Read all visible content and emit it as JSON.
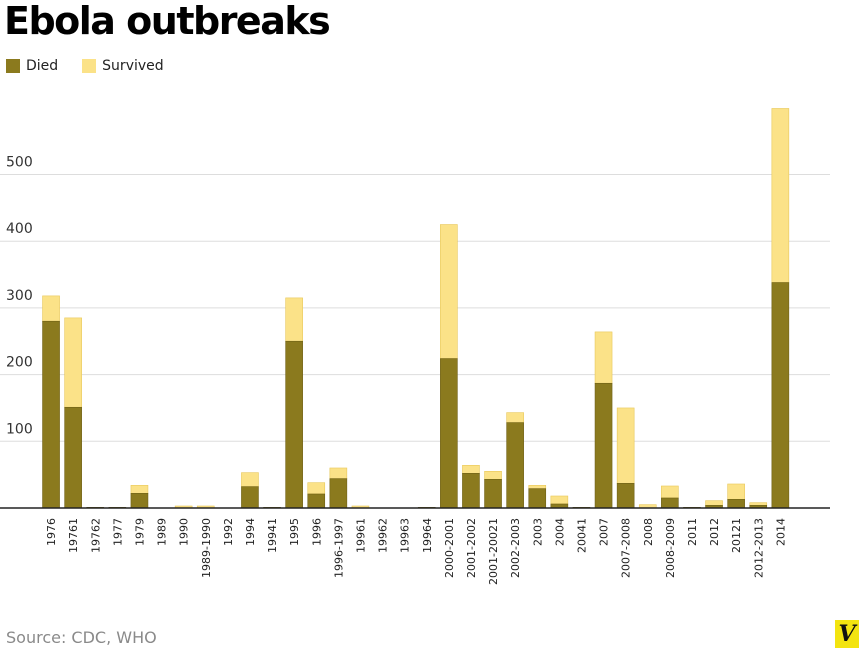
{
  "chart_data": {
    "type": "bar",
    "stacked": true,
    "title": "Ebola outbreaks",
    "legend_position": "top-left",
    "grid": true,
    "ylim": [
      0,
      600
    ],
    "yticks": [
      100,
      200,
      300,
      400,
      500
    ],
    "categories": [
      "1976",
      "19761",
      "19762",
      "1977",
      "1979",
      "1989",
      "1990",
      "1989-1990",
      "1992",
      "1994",
      "19941",
      "1995",
      "1996",
      "1996-1997",
      "19961",
      "19962",
      "19963",
      "19964",
      "2000-2001",
      "2001-2002",
      "2001-20021",
      "2002-2003",
      "2003",
      "2004",
      "20041",
      "2007",
      "2007-2008",
      "2008",
      "2008-2009",
      "2011",
      "2012",
      "20121",
      "2012-2013",
      "2014"
    ],
    "series": [
      {
        "name": "Died",
        "color": "#8b7a1e",
        "values": [
          280,
          151,
          1,
          1,
          22,
          0,
          0,
          0,
          0,
          32,
          1,
          250,
          21,
          44,
          0,
          0,
          0,
          1,
          224,
          52,
          43,
          128,
          29,
          6,
          1,
          187,
          37,
          0,
          15,
          1,
          4,
          13,
          4,
          338
        ]
      },
      {
        "name": "Survived",
        "color": "#fbe288",
        "values": [
          38,
          134,
          0,
          0,
          12,
          0,
          3,
          3,
          0,
          21,
          0,
          65,
          17,
          16,
          3,
          0,
          0,
          0,
          201,
          12,
          12,
          15,
          5,
          12,
          0,
          77,
          113,
          5,
          18,
          0,
          7,
          23,
          4,
          261
        ]
      }
    ],
    "source": "Source: CDC, WHO"
  },
  "logo_text": "V"
}
